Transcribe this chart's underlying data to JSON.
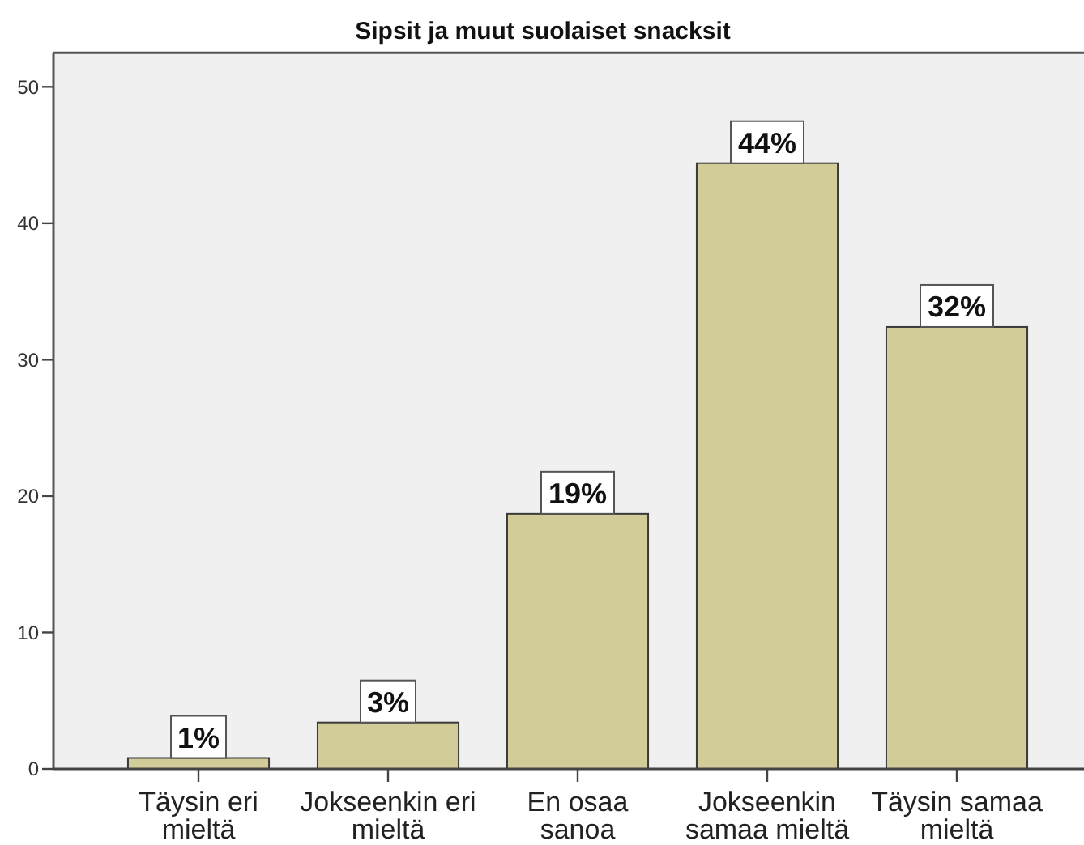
{
  "chart_data": {
    "type": "bar",
    "title": "Sipsit ja muut suolaiset snacksit",
    "categories": [
      "Täysin eri\nmieltä",
      "Jokseenkin eri\nmieltä",
      "En osaa\nsanoa",
      "Jokseenkin\nsamaa mieltä",
      "Täysin samaa\nmieltä"
    ],
    "values": [
      0.8,
      3.4,
      18.7,
      44.4,
      32.4
    ],
    "color": "#d2cd98",
    "ylim": [
      0,
      52.5
    ],
    "yticks": [
      0,
      10,
      20,
      30,
      40,
      50
    ],
    "value_labels": [
      "1%",
      "3%",
      "19%",
      "44%",
      "32%"
    ]
  }
}
